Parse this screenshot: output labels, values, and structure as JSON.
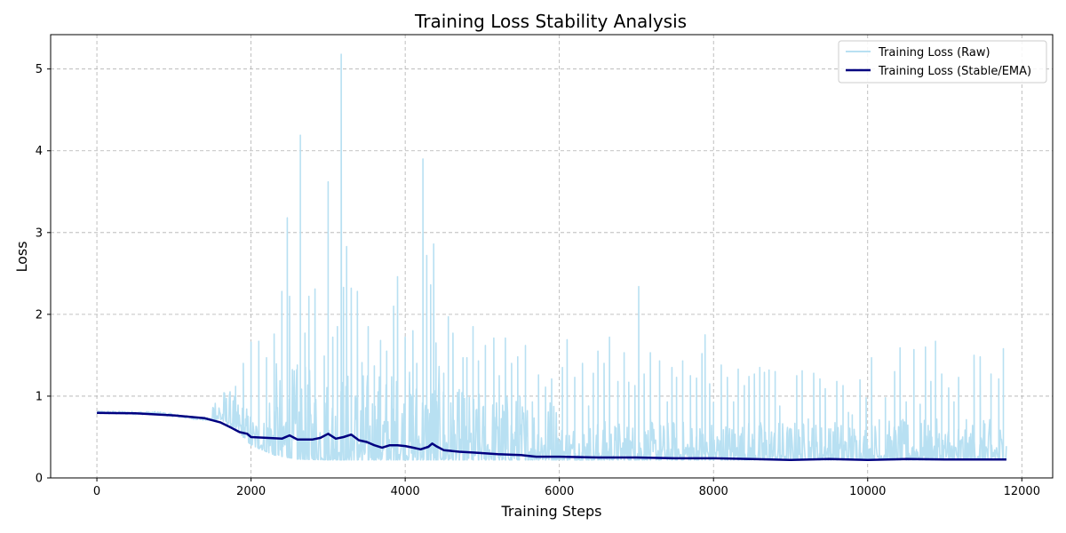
{
  "chart_data": {
    "type": "line",
    "title": "Training Loss Stability Analysis",
    "xlabel": "Training Steps",
    "ylabel": "Loss",
    "xlim": [
      -600,
      12400
    ],
    "ylim": [
      0,
      5.42
    ],
    "xticks": [
      0,
      2000,
      4000,
      6000,
      8000,
      10000,
      12000
    ],
    "yticks": [
      0,
      1,
      2,
      3,
      4,
      5
    ],
    "grid": true,
    "legend_position": "top-right",
    "series": [
      {
        "name": "Training Loss (Raw)",
        "color": "#b8e0f2",
        "style": "thin-noisy",
        "baseline": [
          [
            0,
            0.8
          ],
          [
            800,
            0.79
          ],
          [
            1200,
            0.74
          ],
          [
            1600,
            0.7
          ],
          [
            1800,
            0.6
          ],
          [
            2000,
            0.4
          ],
          [
            2300,
            0.28
          ],
          [
            2600,
            0.23
          ],
          [
            3000,
            0.22
          ],
          [
            12000,
            0.22
          ]
        ],
        "spikes": [
          [
            1800,
            1.12
          ],
          [
            1900,
            1.4
          ],
          [
            2000,
            1.66
          ],
          [
            2100,
            1.67
          ],
          [
            2200,
            1.47
          ],
          [
            2300,
            1.76
          ],
          [
            2400,
            2.28
          ],
          [
            2470,
            3.18
          ],
          [
            2500,
            2.22
          ],
          [
            2600,
            1.38
          ],
          [
            2640,
            4.19
          ],
          [
            2700,
            1.77
          ],
          [
            2750,
            2.22
          ],
          [
            2830,
            2.31
          ],
          [
            2950,
            1.49
          ],
          [
            3000,
            3.62
          ],
          [
            3060,
            1.72
          ],
          [
            3120,
            1.85
          ],
          [
            3170,
            5.18
          ],
          [
            3200,
            2.33
          ],
          [
            3240,
            2.83
          ],
          [
            3300,
            2.32
          ],
          [
            3380,
            2.28
          ],
          [
            3440,
            1.41
          ],
          [
            3520,
            1.85
          ],
          [
            3600,
            1.37
          ],
          [
            3680,
            1.68
          ],
          [
            3760,
            1.55
          ],
          [
            3850,
            2.1
          ],
          [
            3900,
            2.46
          ],
          [
            4000,
            1.72
          ],
          [
            4100,
            1.8
          ],
          [
            4150,
            1.4
          ],
          [
            4230,
            3.9
          ],
          [
            4280,
            2.72
          ],
          [
            4330,
            2.36
          ],
          [
            4370,
            2.86
          ],
          [
            4400,
            1.65
          ],
          [
            4500,
            1.28
          ],
          [
            4560,
            1.97
          ],
          [
            4620,
            1.77
          ],
          [
            4700,
            1.08
          ],
          [
            4750,
            1.47
          ],
          [
            4800,
            1.47
          ],
          [
            4880,
            1.85
          ],
          [
            4950,
            1.43
          ],
          [
            5040,
            1.62
          ],
          [
            5150,
            1.71
          ],
          [
            5220,
            1.25
          ],
          [
            5300,
            1.71
          ],
          [
            5380,
            1.4
          ],
          [
            5460,
            1.48
          ],
          [
            5560,
            1.62
          ],
          [
            5650,
            0.93
          ],
          [
            5730,
            1.26
          ],
          [
            5820,
            1.11
          ],
          [
            5900,
            1.21
          ],
          [
            6040,
            1.35
          ],
          [
            6100,
            1.69
          ],
          [
            6200,
            1.23
          ],
          [
            6300,
            1.4
          ],
          [
            6380,
            0.88
          ],
          [
            6440,
            1.28
          ],
          [
            6500,
            1.55
          ],
          [
            6580,
            1.4
          ],
          [
            6650,
            1.72
          ],
          [
            6760,
            1.18
          ],
          [
            6840,
            1.53
          ],
          [
            6900,
            1.17
          ],
          [
            6980,
            1.13
          ],
          [
            7030,
            2.34
          ],
          [
            7100,
            1.27
          ],
          [
            7180,
            1.53
          ],
          [
            7300,
            1.43
          ],
          [
            7400,
            0.93
          ],
          [
            7460,
            1.35
          ],
          [
            7520,
            1.23
          ],
          [
            7600,
            1.43
          ],
          [
            7700,
            1.25
          ],
          [
            7780,
            1.22
          ],
          [
            7850,
            1.52
          ],
          [
            7890,
            1.75
          ],
          [
            7950,
            1.15
          ],
          [
            8000,
            0.92
          ],
          [
            8100,
            1.38
          ],
          [
            8180,
            1.23
          ],
          [
            8260,
            0.93
          ],
          [
            8320,
            1.33
          ],
          [
            8400,
            1.13
          ],
          [
            8460,
            1.24
          ],
          [
            8530,
            1.27
          ],
          [
            8600,
            1.35
          ],
          [
            8660,
            1.29
          ],
          [
            8720,
            1.32
          ],
          [
            8800,
            1.3
          ],
          [
            8860,
            0.88
          ],
          [
            9000,
            0.34
          ],
          [
            9080,
            1.25
          ],
          [
            9150,
            1.31
          ],
          [
            9230,
            0.72
          ],
          [
            9300,
            1.28
          ],
          [
            9380,
            1.21
          ],
          [
            9450,
            1.09
          ],
          [
            9520,
            0.6
          ],
          [
            9600,
            1.18
          ],
          [
            9680,
            1.13
          ],
          [
            9750,
            0.8
          ],
          [
            9800,
            0.77
          ],
          [
            9900,
            1.2
          ],
          [
            9980,
            0.98
          ],
          [
            10050,
            1.47
          ],
          [
            10150,
            0.71
          ],
          [
            10230,
            0.98
          ],
          [
            10350,
            1.3
          ],
          [
            10420,
            1.59
          ],
          [
            10500,
            0.93
          ],
          [
            10600,
            1.57
          ],
          [
            10680,
            0.9
          ],
          [
            10750,
            1.6
          ],
          [
            10820,
            1.18
          ],
          [
            10880,
            1.67
          ],
          [
            10960,
            1.27
          ],
          [
            11050,
            1.1
          ],
          [
            11120,
            0.93
          ],
          [
            11180,
            1.23
          ],
          [
            11280,
            0.49
          ],
          [
            11380,
            1.5
          ],
          [
            11460,
            1.48
          ],
          [
            11520,
            0.66
          ],
          [
            11600,
            1.27
          ],
          [
            11700,
            1.21
          ],
          [
            11760,
            1.58
          ]
        ]
      },
      {
        "name": "Training Loss (Stable/EMA)",
        "color": "#000080",
        "style": "thick-smooth",
        "points": [
          [
            0,
            0.795
          ],
          [
            500,
            0.79
          ],
          [
            1000,
            0.765
          ],
          [
            1400,
            0.73
          ],
          [
            1600,
            0.68
          ],
          [
            1750,
            0.61
          ],
          [
            1850,
            0.56
          ],
          [
            1950,
            0.54
          ],
          [
            2000,
            0.5
          ],
          [
            2200,
            0.49
          ],
          [
            2400,
            0.48
          ],
          [
            2500,
            0.52
          ],
          [
            2600,
            0.47
          ],
          [
            2800,
            0.47
          ],
          [
            2900,
            0.49
          ],
          [
            3000,
            0.54
          ],
          [
            3100,
            0.48
          ],
          [
            3200,
            0.5
          ],
          [
            3300,
            0.53
          ],
          [
            3400,
            0.46
          ],
          [
            3500,
            0.44
          ],
          [
            3600,
            0.4
          ],
          [
            3700,
            0.37
          ],
          [
            3800,
            0.4
          ],
          [
            3900,
            0.4
          ],
          [
            4000,
            0.39
          ],
          [
            4100,
            0.37
          ],
          [
            4200,
            0.35
          ],
          [
            4300,
            0.38
          ],
          [
            4350,
            0.42
          ],
          [
            4400,
            0.39
          ],
          [
            4500,
            0.34
          ],
          [
            4700,
            0.32
          ],
          [
            4900,
            0.31
          ],
          [
            5200,
            0.29
          ],
          [
            5500,
            0.28
          ],
          [
            5700,
            0.26
          ],
          [
            6000,
            0.26
          ],
          [
            6500,
            0.25
          ],
          [
            7000,
            0.25
          ],
          [
            7500,
            0.24
          ],
          [
            8000,
            0.24
          ],
          [
            8500,
            0.23
          ],
          [
            9000,
            0.22
          ],
          [
            9500,
            0.23
          ],
          [
            10000,
            0.22
          ],
          [
            10500,
            0.23
          ],
          [
            11000,
            0.225
          ],
          [
            11500,
            0.225
          ],
          [
            11800,
            0.225
          ]
        ]
      }
    ]
  }
}
